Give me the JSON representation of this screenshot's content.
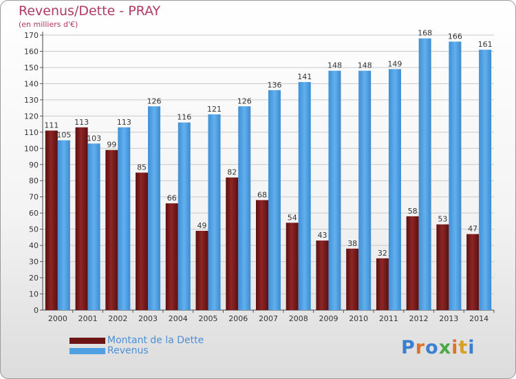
{
  "chart_data": {
    "type": "bar",
    "title": "Revenus/Dette - PRAY",
    "subtitle": "(en milliers d'€)",
    "categories": [
      "2000",
      "2001",
      "2002",
      "2003",
      "2004",
      "2005",
      "2006",
      "2007",
      "2008",
      "2009",
      "2010",
      "2011",
      "2012",
      "2013",
      "2014"
    ],
    "series": [
      {
        "name": "Montant de la Dette",
        "color": "#7a1a1a",
        "values": [
          111,
          113,
          99,
          85,
          66,
          49,
          82,
          68,
          54,
          43,
          38,
          32,
          58,
          53,
          47
        ]
      },
      {
        "name": "Revenus",
        "color": "#4fa0e2",
        "values": [
          105,
          103,
          113,
          126,
          116,
          121,
          126,
          136,
          141,
          148,
          148,
          149,
          168,
          166,
          161
        ]
      }
    ],
    "ylim": [
      0,
      170
    ],
    "yticks": [
      0,
      10,
      20,
      30,
      40,
      50,
      60,
      70,
      80,
      90,
      100,
      110,
      120,
      130,
      140,
      150,
      160,
      170
    ],
    "grid": true,
    "legend_position": "bottom-left"
  },
  "logo": {
    "text": "Proxiti",
    "colors": [
      "#3a7fd0",
      "#e0702a",
      "#3a7fd0",
      "#4aa848",
      "#e0702a",
      "#d6a11e",
      "#3a7fd0"
    ]
  }
}
